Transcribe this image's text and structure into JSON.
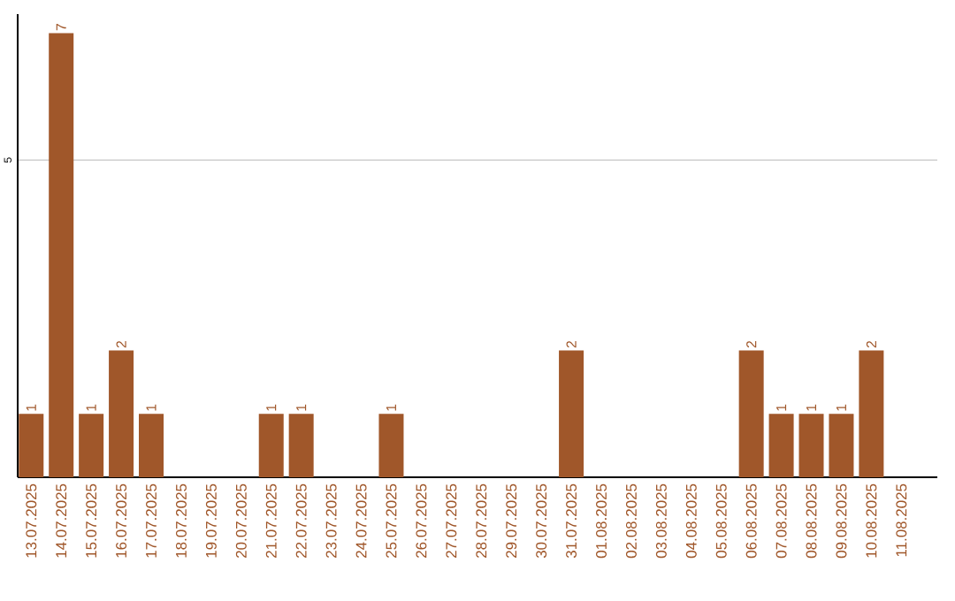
{
  "chart_data": {
    "type": "bar",
    "categories": [
      "13.07.2025",
      "14.07.2025",
      "15.07.2025",
      "16.07.2025",
      "17.07.2025",
      "18.07.2025",
      "19.07.2025",
      "20.07.2025",
      "21.07.2025",
      "22.07.2025",
      "23.07.2025",
      "24.07.2025",
      "25.07.2025",
      "26.07.2025",
      "27.07.2025",
      "28.07.2025",
      "29.07.2025",
      "30.07.2025",
      "31.07.2025",
      "01.08.2025",
      "02.08.2025",
      "03.08.2025",
      "04.08.2025",
      "05.08.2025",
      "06.08.2025",
      "07.08.2025",
      "08.08.2025",
      "09.08.2025",
      "10.08.2025",
      "11.08.2025"
    ],
    "values": [
      1,
      7,
      1,
      2,
      1,
      0,
      0,
      0,
      1,
      1,
      0,
      0,
      1,
      0,
      0,
      0,
      0,
      0,
      2,
      0,
      0,
      0,
      0,
      0,
      2,
      1,
      1,
      1,
      2,
      0
    ],
    "value_labels": [
      "1",
      "7",
      "1",
      "2",
      "1",
      null,
      null,
      null,
      "1",
      "1",
      null,
      null,
      "1",
      null,
      null,
      null,
      null,
      null,
      "2",
      null,
      null,
      null,
      null,
      null,
      "2",
      "1",
      "1",
      "1",
      "2",
      null
    ],
    "color": "#a0572a",
    "ylim": [
      0,
      7.3
    ],
    "yticks": [
      5
    ],
    "grid": "y"
  }
}
